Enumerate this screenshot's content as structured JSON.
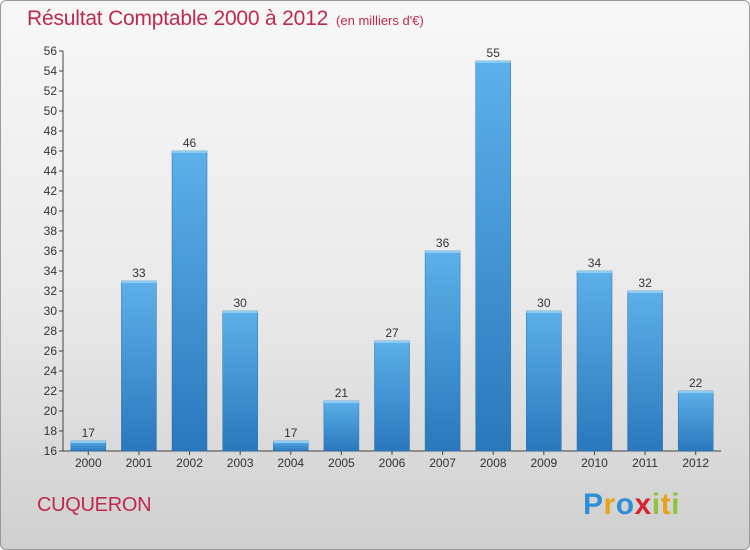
{
  "chart_data": {
    "type": "bar",
    "title": "Résultat Comptable 2000 à 2012",
    "subtitle": "(en milliers d'€)",
    "categories": [
      "2000",
      "2001",
      "2002",
      "2003",
      "2004",
      "2005",
      "2006",
      "2007",
      "2008",
      "2009",
      "2010",
      "2011",
      "2012"
    ],
    "values": [
      17,
      33,
      46,
      30,
      17,
      21,
      27,
      36,
      55,
      30,
      34,
      32,
      22
    ],
    "ylim": [
      16,
      56
    ],
    "yticks": [
      16,
      18,
      20,
      22,
      24,
      26,
      28,
      30,
      32,
      34,
      36,
      38,
      40,
      42,
      44,
      46,
      48,
      50,
      52,
      54,
      56
    ],
    "xlabel": "",
    "ylabel": "",
    "grid": false,
    "bar_color": "#3d95dc"
  },
  "town": "CUQUERON",
  "logo": {
    "letters": [
      "P",
      "r",
      "o",
      "x",
      "i",
      "t",
      "i"
    ],
    "colors": [
      "#2f8fd6",
      "#e8a21a",
      "#2f8fd6",
      "#d6262e",
      "#8ec33b",
      "#e8a21a",
      "#8ec33b"
    ]
  }
}
